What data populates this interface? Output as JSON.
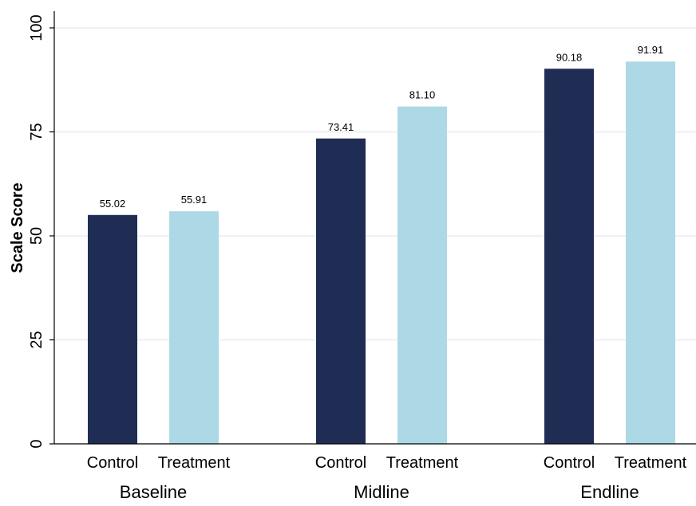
{
  "chart_data": {
    "type": "bar",
    "ylabel": "Scale Score",
    "xlabel": "",
    "ylim": [
      0,
      100
    ],
    "yticks": [
      0,
      25,
      50,
      75,
      100
    ],
    "grid": true,
    "groups": [
      {
        "label": "Baseline",
        "bars": [
          {
            "label": "Control",
            "value": 55.02,
            "value_label": "55.02",
            "series": "Control"
          },
          {
            "label": "Treatment",
            "value": 55.91,
            "value_label": "55.91",
            "series": "Treatment"
          }
        ]
      },
      {
        "label": "Midline",
        "bars": [
          {
            "label": "Control",
            "value": 73.41,
            "value_label": "73.41",
            "series": "Control"
          },
          {
            "label": "Treatment",
            "value": 81.1,
            "value_label": "81.10",
            "series": "Treatment"
          }
        ]
      },
      {
        "label": "Endline",
        "bars": [
          {
            "label": "Control",
            "value": 90.18,
            "value_label": "90.18",
            "series": "Control"
          },
          {
            "label": "Treatment",
            "value": 91.91,
            "value_label": "91.91",
            "series": "Treatment"
          }
        ]
      }
    ],
    "series_colors": {
      "Control": "#1f2d55",
      "Treatment": "#add8e6"
    },
    "gridline_color": "#e6eef2",
    "axis_color": "#000000"
  }
}
